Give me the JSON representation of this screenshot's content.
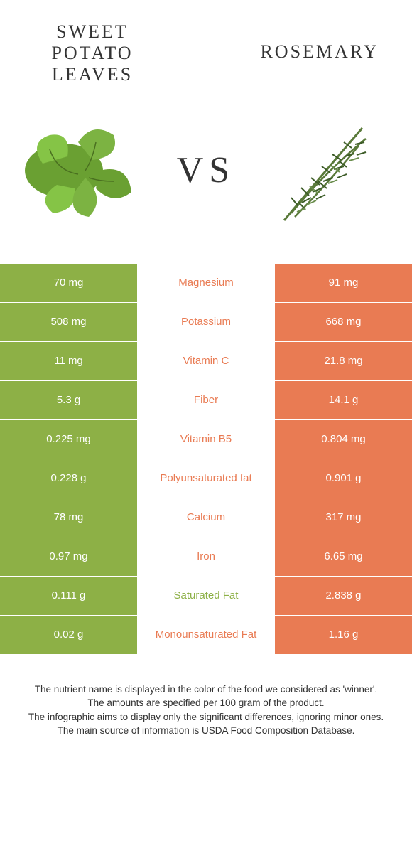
{
  "header": {
    "left_title": "SWEET POTATO LEAVES",
    "right_title": "ROSEMARY",
    "vs": "VS"
  },
  "colors": {
    "green": "#8db046",
    "orange": "#e97b53",
    "left_bg": "#8db046",
    "right_bg": "#e97b53"
  },
  "rows": [
    {
      "left": "70 mg",
      "label": "Magnesium",
      "right": "91 mg",
      "winner": "right"
    },
    {
      "left": "508 mg",
      "label": "Potassium",
      "right": "668 mg",
      "winner": "right"
    },
    {
      "left": "11 mg",
      "label": "Vitamin C",
      "right": "21.8 mg",
      "winner": "right"
    },
    {
      "left": "5.3 g",
      "label": "Fiber",
      "right": "14.1 g",
      "winner": "right"
    },
    {
      "left": "0.225 mg",
      "label": "Vitamin B5",
      "right": "0.804 mg",
      "winner": "right"
    },
    {
      "left": "0.228 g",
      "label": "Polyunsaturated fat",
      "right": "0.901 g",
      "winner": "right"
    },
    {
      "left": "78 mg",
      "label": "Calcium",
      "right": "317 mg",
      "winner": "right"
    },
    {
      "left": "0.97 mg",
      "label": "Iron",
      "right": "6.65 mg",
      "winner": "right"
    },
    {
      "left": "0.111 g",
      "label": "Saturated Fat",
      "right": "2.838 g",
      "winner": "left"
    },
    {
      "left": "0.02 g",
      "label": "Monounsaturated Fat",
      "right": "1.16 g",
      "winner": "right"
    }
  ],
  "footer": {
    "line1": "The nutrient name is displayed in the color of the food we considered as 'winner'.",
    "line2": "The amounts are specified per 100 gram of the product.",
    "line3": "The infographic aims to display only the significant differences, ignoring minor ones.",
    "line4": "The main source of information is USDA Food Composition Database."
  }
}
